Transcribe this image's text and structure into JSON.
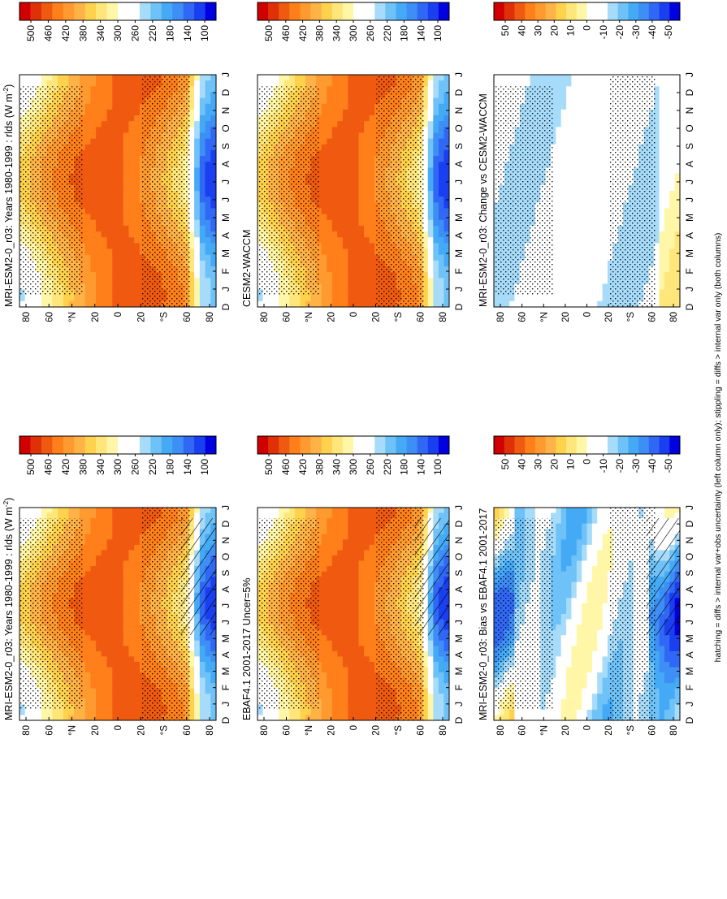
{
  "figure": {
    "footnote": "hatching = diffs > internal var+obs uncertainty (left column only); stippling = diffs > internal var only (both columns)"
  },
  "chart_data": [
    {
      "type": "heatmap",
      "title": "MRI-ESM2-0_r03: Years 1980-1999 : rlds (W m",
      "title_sup": "-2",
      "title_end": ")",
      "field": "abs",
      "hatching": true,
      "x_ticks": [
        "D",
        "J",
        "F",
        "M",
        "A",
        "M",
        "J",
        "J",
        "A",
        "S",
        "O",
        "N",
        "D",
        "J"
      ],
      "y_ticks": [
        "80",
        "60",
        "°N",
        "20",
        "0",
        "20",
        "°S",
        "60",
        "80"
      ],
      "colorbar": {
        "labels": [
          "500",
          "460",
          "420",
          "380",
          "340",
          "300",
          "260",
          "220",
          "180",
          "140",
          "100"
        ],
        "range": [
          80,
          520
        ]
      }
    },
    {
      "type": "heatmap",
      "title": "EBAF4.1 2001-2017 Uncer=5%",
      "field": "abs",
      "hatching": true,
      "x_ticks": [
        "D",
        "J",
        "F",
        "M",
        "A",
        "M",
        "J",
        "J",
        "A",
        "S",
        "O",
        "N",
        "D",
        "J"
      ],
      "y_ticks": [
        "80",
        "60",
        "°N",
        "20",
        "0",
        "20",
        "°S",
        "60",
        "80"
      ],
      "colorbar": {
        "labels": [
          "500",
          "460",
          "420",
          "380",
          "340",
          "300",
          "260",
          "220",
          "180",
          "140",
          "100"
        ],
        "range": [
          80,
          520
        ]
      }
    },
    {
      "type": "heatmap",
      "title": "MRI-ESM2-0_r03: Bias vs EBAF4.1 2001-2017",
      "field": "bias",
      "hatching": true,
      "x_ticks": [
        "D",
        "J",
        "F",
        "M",
        "A",
        "M",
        "J",
        "J",
        "A",
        "S",
        "O",
        "N",
        "D",
        "J"
      ],
      "y_ticks": [
        "80",
        "60",
        "°N",
        "20",
        "0",
        "20",
        "°S",
        "60",
        "80"
      ],
      "colorbar": {
        "labels": [
          "50",
          "40",
          "30",
          "20",
          "10",
          "0",
          "-10",
          "-20",
          "-30",
          "-40",
          "-50"
        ],
        "range": [
          -55,
          55
        ]
      }
    },
    {
      "type": "heatmap",
      "title": "MRI-ESM2-0_r03: Years 1980-1999 : rlds (W m",
      "title_sup": "-2",
      "title_end": ")",
      "field": "abs",
      "hatching": false,
      "x_ticks": [
        "D",
        "J",
        "F",
        "M",
        "A",
        "M",
        "J",
        "J",
        "A",
        "S",
        "O",
        "N",
        "D",
        "J"
      ],
      "y_ticks": [
        "80",
        "60",
        "°N",
        "20",
        "0",
        "20",
        "°S",
        "60",
        "80"
      ],
      "colorbar": {
        "labels": [
          "500",
          "460",
          "420",
          "380",
          "340",
          "300",
          "260",
          "220",
          "180",
          "140",
          "100"
        ],
        "range": [
          80,
          520
        ]
      }
    },
    {
      "type": "heatmap",
      "title": "CESM2-WACCM",
      "field": "abs",
      "hatching": false,
      "x_ticks": [
        "D",
        "J",
        "F",
        "M",
        "A",
        "M",
        "J",
        "J",
        "A",
        "S",
        "O",
        "N",
        "D",
        "J"
      ],
      "y_ticks": [
        "80",
        "60",
        "°N",
        "20",
        "0",
        "20",
        "°S",
        "60",
        "80"
      ],
      "colorbar": {
        "labels": [
          "500",
          "460",
          "420",
          "380",
          "340",
          "300",
          "260",
          "220",
          "180",
          "140",
          "100"
        ],
        "range": [
          80,
          520
        ]
      }
    },
    {
      "type": "heatmap",
      "title": "MRI-ESM2-0_r03: Change vs CESM2-WACCM",
      "field": "change",
      "hatching": false,
      "x_ticks": [
        "D",
        "J",
        "F",
        "M",
        "A",
        "M",
        "J",
        "J",
        "A",
        "S",
        "O",
        "N",
        "D",
        "J"
      ],
      "y_ticks": [
        "80",
        "60",
        "°N",
        "20",
        "0",
        "20",
        "°S",
        "60",
        "80"
      ],
      "colorbar": {
        "labels": [
          "50",
          "40",
          "30",
          "20",
          "10",
          "0",
          "-10",
          "-20",
          "-30",
          "-40",
          "-50"
        ],
        "range": [
          -55,
          55
        ]
      }
    }
  ],
  "colors": {
    "scale": [
      "#0000e0",
      "#1a3ff0",
      "#3068f5",
      "#3d8ef5",
      "#45aaf5",
      "#6ec2f7",
      "#a6dcfa",
      "#ffffff",
      "#ffffff",
      "#fff6a8",
      "#ffe67a",
      "#ffd24d",
      "#ffb347",
      "#ff9a30",
      "#ff7f1a",
      "#f05a10",
      "#e03008",
      "#d00000"
    ]
  }
}
